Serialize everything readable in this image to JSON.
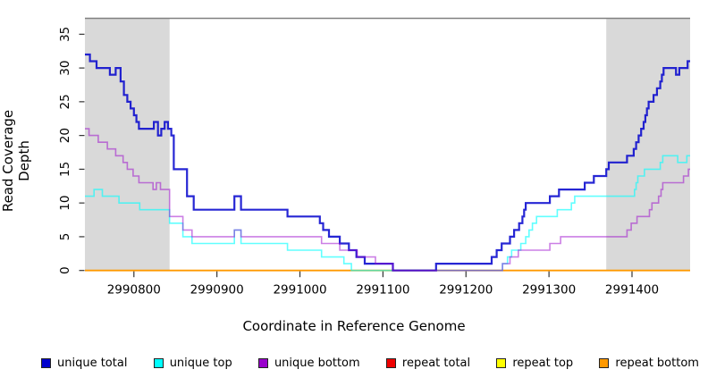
{
  "figure": {
    "xlabel": "Coordinate in Reference Genome",
    "ylabel": "Read Coverage Depth"
  },
  "chart_data": {
    "type": "line",
    "subtype": "step-coverage",
    "title": "",
    "xlabel": "Coordinate in Reference Genome",
    "ylabel": "Read Coverage Depth",
    "xlim": [
      2990741,
      2991470
    ],
    "ylim": [
      0,
      37.4
    ],
    "x_ticks": [
      2990800,
      2990900,
      2991000,
      2991100,
      2991200,
      2991300,
      2991400
    ],
    "y_ticks": [
      0,
      5,
      10,
      15,
      20,
      25,
      30,
      35
    ],
    "grid": false,
    "frame_top_color": "#808080",
    "shade_color": "#D9D9D9",
    "shaded_regions": [
      {
        "x1": 2990741,
        "x2": 2990843
      },
      {
        "x1": 2991369,
        "x2": 2991470
      }
    ],
    "draw_order": [
      "repeat total",
      "repeat top",
      "repeat bottom",
      "unique top",
      "unique total",
      "unique bottom"
    ],
    "series": [
      {
        "name": "unique total",
        "color": "#0000CC",
        "opacity": 0.85,
        "width": 2.2,
        "steps": [
          [
            2990741,
            32
          ],
          [
            2990747,
            31
          ],
          [
            2990755,
            30
          ],
          [
            2990771,
            29
          ],
          [
            2990778,
            30
          ],
          [
            2990784,
            28
          ],
          [
            2990788,
            26
          ],
          [
            2990792,
            25
          ],
          [
            2990796,
            24
          ],
          [
            2990800,
            23
          ],
          [
            2990803,
            22
          ],
          [
            2990806,
            21
          ],
          [
            2990824,
            22
          ],
          [
            2990829,
            20
          ],
          [
            2990833,
            21
          ],
          [
            2990837,
            22
          ],
          [
            2990841,
            21
          ],
          [
            2990845,
            20
          ],
          [
            2990848,
            15
          ],
          [
            2990864,
            11
          ],
          [
            2990872,
            9
          ],
          [
            2990921,
            11
          ],
          [
            2990929,
            9
          ],
          [
            2990985,
            8
          ],
          [
            2991024,
            7
          ],
          [
            2991028,
            6
          ],
          [
            2991035,
            5
          ],
          [
            2991048,
            4
          ],
          [
            2991059,
            3
          ],
          [
            2991068,
            2
          ],
          [
            2991078,
            1
          ],
          [
            2991112,
            0
          ],
          [
            2991164,
            1
          ],
          [
            2991231,
            2
          ],
          [
            2991237,
            3
          ],
          [
            2991243,
            4
          ],
          [
            2991253,
            5
          ],
          [
            2991258,
            6
          ],
          [
            2991264,
            7
          ],
          [
            2991268,
            8
          ],
          [
            2991270,
            9
          ],
          [
            2991272,
            10
          ],
          [
            2991301,
            11
          ],
          [
            2991312,
            12
          ],
          [
            2991343,
            13
          ],
          [
            2991354,
            14
          ],
          [
            2991369,
            15
          ],
          [
            2991372,
            16
          ],
          [
            2991394,
            17
          ],
          [
            2991402,
            18
          ],
          [
            2991405,
            19
          ],
          [
            2991408,
            20
          ],
          [
            2991411,
            21
          ],
          [
            2991414,
            22
          ],
          [
            2991416,
            23
          ],
          [
            2991418,
            24
          ],
          [
            2991420,
            25
          ],
          [
            2991426,
            26
          ],
          [
            2991430,
            27
          ],
          [
            2991434,
            28
          ],
          [
            2991436,
            29
          ],
          [
            2991438,
            30
          ],
          [
            2991453,
            29
          ],
          [
            2991457,
            30
          ],
          [
            2991467,
            31
          ]
        ]
      },
      {
        "name": "unique top",
        "color": "#00FFFF",
        "opacity": 0.62,
        "width": 1.6,
        "steps": [
          [
            2990741,
            11
          ],
          [
            2990752,
            12
          ],
          [
            2990762,
            11
          ],
          [
            2990782,
            10
          ],
          [
            2990807,
            9
          ],
          [
            2990843,
            7
          ],
          [
            2990859,
            5
          ],
          [
            2990870,
            4
          ],
          [
            2990921,
            6
          ],
          [
            2990929,
            4
          ],
          [
            2990985,
            3
          ],
          [
            2991026,
            2
          ],
          [
            2991053,
            1
          ],
          [
            2991062,
            0
          ],
          [
            2991244,
            1
          ],
          [
            2991250,
            2
          ],
          [
            2991255,
            3
          ],
          [
            2991266,
            4
          ],
          [
            2991272,
            5
          ],
          [
            2991276,
            6
          ],
          [
            2991280,
            7
          ],
          [
            2991285,
            8
          ],
          [
            2991310,
            9
          ],
          [
            2991327,
            10
          ],
          [
            2991331,
            11
          ],
          [
            2991403,
            12
          ],
          [
            2991405,
            13
          ],
          [
            2991407,
            14
          ],
          [
            2991415,
            15
          ],
          [
            2991434,
            16
          ],
          [
            2991437,
            17
          ],
          [
            2991455,
            16
          ],
          [
            2991466,
            17
          ]
        ]
      },
      {
        "name": "unique bottom",
        "color": "#9900CC",
        "opacity": 0.5,
        "width": 1.6,
        "steps": [
          [
            2990741,
            21
          ],
          [
            2990746,
            20
          ],
          [
            2990757,
            19
          ],
          [
            2990768,
            18
          ],
          [
            2990778,
            17
          ],
          [
            2990787,
            16
          ],
          [
            2990792,
            15
          ],
          [
            2990799,
            14
          ],
          [
            2990806,
            13
          ],
          [
            2990823,
            12
          ],
          [
            2990827,
            13
          ],
          [
            2990832,
            12
          ],
          [
            2990843,
            8
          ],
          [
            2990859,
            6
          ],
          [
            2990870,
            5
          ],
          [
            2990921,
            6
          ],
          [
            2990929,
            5
          ],
          [
            2991026,
            4
          ],
          [
            2991048,
            3
          ],
          [
            2991069,
            2
          ],
          [
            2991091,
            1
          ],
          [
            2991112,
            0
          ],
          [
            2991244,
            1
          ],
          [
            2991253,
            2
          ],
          [
            2991263,
            3
          ],
          [
            2991301,
            4
          ],
          [
            2991314,
            5
          ],
          [
            2991394,
            6
          ],
          [
            2991399,
            7
          ],
          [
            2991406,
            8
          ],
          [
            2991421,
            9
          ],
          [
            2991424,
            10
          ],
          [
            2991432,
            11
          ],
          [
            2991435,
            12
          ],
          [
            2991437,
            13
          ],
          [
            2991462,
            14
          ],
          [
            2991468,
            15
          ]
        ]
      },
      {
        "name": "repeat total",
        "color": "#EE0000",
        "opacity": 1,
        "width": 1.3,
        "steps": [
          [
            2990741,
            0
          ]
        ]
      },
      {
        "name": "repeat top",
        "color": "#FFFF00",
        "opacity": 1,
        "width": 1.3,
        "steps": [
          [
            2990741,
            0
          ]
        ]
      },
      {
        "name": "repeat bottom",
        "color": "#FF9900",
        "opacity": 1,
        "width": 1.8,
        "steps": [
          [
            2990741,
            0
          ]
        ]
      }
    ]
  },
  "legend": {
    "items": [
      {
        "label": "unique total",
        "color": "#0000CC"
      },
      {
        "label": "unique top",
        "color": "#00FFFF"
      },
      {
        "label": "unique bottom",
        "color": "#9900CC"
      },
      {
        "label": "repeat total",
        "color": "#EE0000"
      },
      {
        "label": "repeat top",
        "color": "#FFFF00"
      },
      {
        "label": "repeat bottom",
        "color": "#FF9900"
      }
    ]
  }
}
